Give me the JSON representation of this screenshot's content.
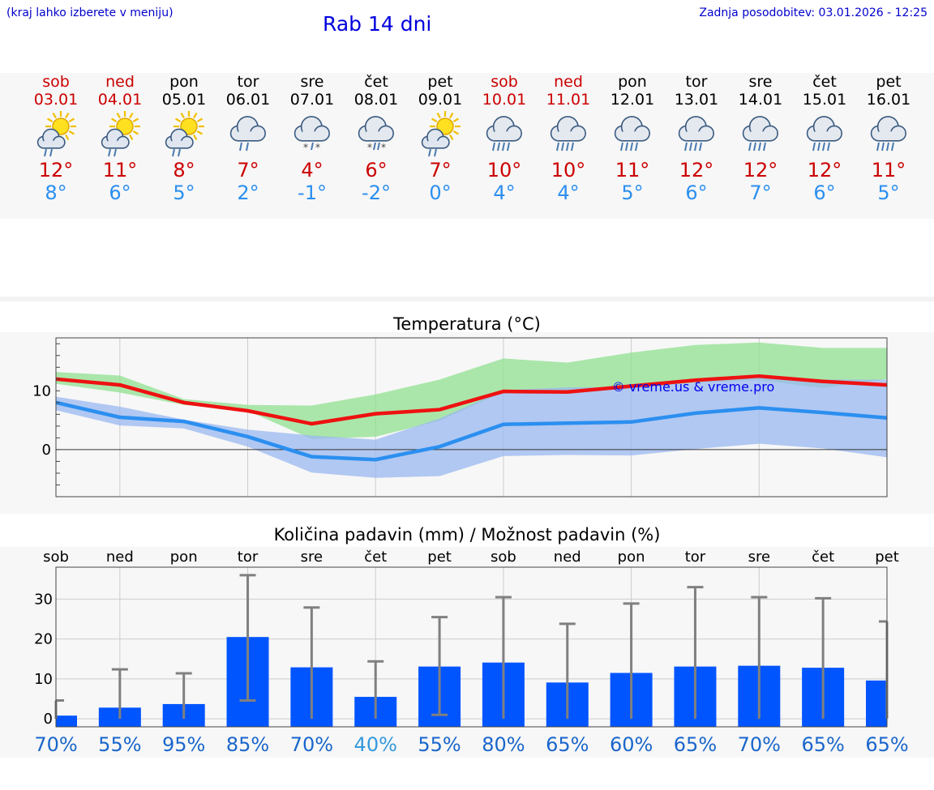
{
  "header": {
    "left_note": "(kraj lahko izberete v meniju)",
    "title": "Rab 14 dni",
    "updated": "Zadnja posodobitev: 03.01.2026 - 12:25"
  },
  "colors": {
    "weekend": "#cc0000",
    "weekday": "#000000",
    "tmax": "#cc0000",
    "tmin": "#2b8ff0",
    "bar": "#0055ff",
    "error": "#808080"
  },
  "days": [
    {
      "name": "sob",
      "date": "03.01",
      "weekend": true,
      "icon": "sun-cloud-rain-icon",
      "tmax": "12°",
      "tmin": "8°"
    },
    {
      "name": "ned",
      "date": "04.01",
      "weekend": true,
      "icon": "sun-cloud-rain-icon",
      "tmax": "11°",
      "tmin": "6°"
    },
    {
      "name": "pon",
      "date": "05.01",
      "weekend": false,
      "icon": "sun-cloud-rain-icon",
      "tmax": "8°",
      "tmin": "5°"
    },
    {
      "name": "tor",
      "date": "06.01",
      "weekend": false,
      "icon": "cloud-rain-icon",
      "tmax": "7°",
      "tmin": "2°"
    },
    {
      "name": "sre",
      "date": "07.01",
      "weekend": false,
      "icon": "cloud-snow-icon",
      "tmax": "4°",
      "tmin": "-1°"
    },
    {
      "name": "čet",
      "date": "08.01",
      "weekend": false,
      "icon": "cloud-sleet-icon",
      "tmax": "6°",
      "tmin": "-2°"
    },
    {
      "name": "pet",
      "date": "09.01",
      "weekend": false,
      "icon": "sun-cloud-rain-icon",
      "tmax": "7°",
      "tmin": "0°"
    },
    {
      "name": "sob",
      "date": "10.01",
      "weekend": true,
      "icon": "cloud-heavy-rain-icon",
      "tmax": "10°",
      "tmin": "4°"
    },
    {
      "name": "ned",
      "date": "11.01",
      "weekend": true,
      "icon": "cloud-heavy-rain-icon",
      "tmax": "10°",
      "tmin": "4°"
    },
    {
      "name": "pon",
      "date": "12.01",
      "weekend": false,
      "icon": "cloud-heavy-rain-icon",
      "tmax": "11°",
      "tmin": "5°"
    },
    {
      "name": "tor",
      "date": "13.01",
      "weekend": false,
      "icon": "cloud-heavy-rain-icon",
      "tmax": "12°",
      "tmin": "6°"
    },
    {
      "name": "sre",
      "date": "14.01",
      "weekend": false,
      "icon": "cloud-heavy-rain-icon",
      "tmax": "12°",
      "tmin": "7°"
    },
    {
      "name": "čet",
      "date": "15.01",
      "weekend": false,
      "icon": "cloud-heavy-rain-icon",
      "tmax": "12°",
      "tmin": "6°"
    },
    {
      "name": "pet",
      "date": "16.01",
      "weekend": false,
      "icon": "cloud-heavy-rain-icon",
      "tmax": "11°",
      "tmin": "5°"
    }
  ],
  "chart_data": [
    {
      "type": "line",
      "title": "Temperatura (°C)",
      "watermark": "© vreme.us & vreme.pro",
      "ylim": [
        -8,
        19
      ],
      "yticks": [
        0,
        10
      ],
      "x": [
        0,
        1,
        2,
        3,
        4,
        5,
        6,
        7,
        8,
        9,
        10,
        11,
        12,
        13
      ],
      "series": [
        {
          "name": "max",
          "color": "#ee1111",
          "values": [
            12,
            11,
            8,
            6.6,
            4.4,
            6.1,
            6.8,
            9.9,
            9.8,
            10.8,
            11.8,
            12.5,
            11.6,
            11
          ]
        },
        {
          "name": "min",
          "color": "#2b8ff0",
          "values": [
            8,
            5.5,
            4.8,
            2.2,
            -1.2,
            -1.7,
            0.5,
            4.3,
            4.5,
            4.7,
            6.2,
            7.1,
            6.3,
            5.4
          ]
        }
      ],
      "bands": [
        {
          "name": "max-range",
          "color": "#90e090",
          "lower": [
            11.2,
            9.7,
            7.6,
            6.6,
            1.8,
            2.2,
            4.9,
            9.8,
            9.6,
            10.4,
            11.4,
            11.8,
            10.5,
            12
          ],
          "upper": [
            13.2,
            12.6,
            8.6,
            7.6,
            7.5,
            9.4,
            11.9,
            15.5,
            14.8,
            16.5,
            17.8,
            18.2,
            17.3,
            17.3
          ]
        },
        {
          "name": "min-range",
          "color": "#9ab8f0",
          "lower": [
            6.7,
            4.1,
            3.6,
            0.5,
            -3.9,
            -4.8,
            -4.5,
            -1.1,
            -0.9,
            -1,
            0.1,
            1,
            0.2,
            -1.3
          ],
          "upper": [
            9,
            7.3,
            5.1,
            3.4,
            2.4,
            1.7,
            5.3,
            10.1,
            10.6,
            10.6,
            11.4,
            12.5,
            11.9,
            11.9
          ]
        }
      ]
    },
    {
      "type": "bar",
      "title": "Količina padavin (mm) / Možnost padavin (%)",
      "categories": [
        "sob",
        "ned",
        "pon",
        "tor",
        "sre",
        "čet",
        "pet",
        "sob",
        "ned",
        "pon",
        "tor",
        "sre",
        "čet",
        "pet"
      ],
      "values": [
        0.8,
        2.8,
        3.7,
        20.5,
        12.9,
        5.5,
        13.1,
        14.1,
        9.1,
        11.5,
        13.1,
        13.3,
        12.8,
        9.6
      ],
      "error_low": [
        0,
        0,
        0,
        4.6,
        0,
        0,
        1,
        0,
        0,
        0,
        0,
        0,
        0,
        0
      ],
      "error_high": [
        4.6,
        12.4,
        11.4,
        36,
        27.9,
        14.4,
        25.5,
        30.5,
        23.8,
        28.9,
        33,
        30.5,
        30.2,
        24.4
      ],
      "chance": [
        "70%",
        "55%",
        "95%",
        "85%",
        "70%",
        "40%",
        "55%",
        "80%",
        "65%",
        "60%",
        "65%",
        "70%",
        "65%",
        "65%"
      ],
      "chance_colors": [
        "#1a66cc",
        "#1a66cc",
        "#1a66cc",
        "#1a66cc",
        "#1a66cc",
        "#3399dd",
        "#1a66cc",
        "#1a66cc",
        "#1a66cc",
        "#1a66cc",
        "#1a66cc",
        "#1a66cc",
        "#1a66cc",
        "#1a66cc"
      ],
      "ylim": [
        -2,
        38
      ],
      "yticks": [
        0,
        10,
        20,
        30
      ],
      "ylabel": "mm"
    }
  ]
}
